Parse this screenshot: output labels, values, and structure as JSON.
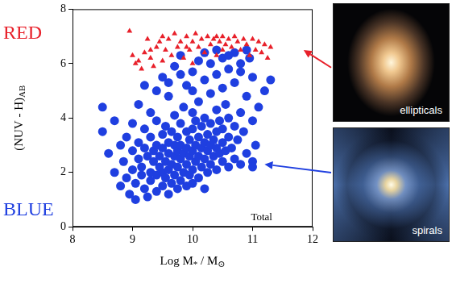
{
  "chart_data": {
    "type": "scatter",
    "x_label": [
      "Log M",
      {
        "sub": "*"
      },
      " / M",
      {
        "sub": "⊙"
      }
    ],
    "y_label": [
      "(NUV - H)",
      {
        "sub": "AB"
      }
    ],
    "xlim": [
      8,
      12
    ],
    "xticks": [
      8,
      9,
      10,
      11,
      12
    ],
    "ylim": [
      0,
      8
    ],
    "yticks": [
      0,
      2,
      4,
      6,
      8
    ],
    "grid": false,
    "annotations": [
      {
        "text": "Total",
        "x": 11.15,
        "y": 0.35
      }
    ],
    "panels": [
      {
        "label": "ellipticals",
        "series": "RED",
        "points_to": {
          "x": 11.85,
          "y": 6.5
        }
      },
      {
        "label": "spirals",
        "series": "BLUE",
        "points_to": {
          "x": 11.2,
          "y": 2.3
        }
      }
    ],
    "series": [
      {
        "name": "RED",
        "color": "#e8202a",
        "marker": "triangle",
        "x": [
          8.95,
          9.0,
          9.05,
          9.1,
          9.15,
          9.2,
          9.25,
          9.3,
          9.35,
          9.4,
          9.45,
          9.5,
          9.5,
          9.55,
          9.6,
          9.65,
          9.7,
          9.75,
          9.8,
          9.85,
          9.9,
          9.95,
          10.0,
          10.0,
          10.05,
          10.1,
          10.15,
          10.2,
          10.25,
          10.3,
          10.35,
          10.4,
          10.45,
          10.5,
          10.5,
          10.55,
          10.6,
          10.65,
          10.7,
          10.75,
          10.8,
          10.85,
          10.9,
          10.95,
          11.0,
          11.05,
          11.1,
          11.15,
          11.2,
          11.25,
          11.3,
          9.3,
          9.9,
          10.4
        ],
        "values": [
          7.2,
          6.3,
          6.0,
          6.1,
          5.8,
          6.4,
          6.9,
          6.2,
          5.9,
          6.6,
          6.8,
          7.0,
          6.1,
          6.5,
          6.9,
          6.3,
          7.1,
          6.6,
          6.8,
          6.2,
          7.0,
          6.5,
          6.8,
          6.0,
          7.1,
          6.6,
          6.9,
          6.4,
          7.0,
          6.7,
          6.9,
          6.3,
          6.8,
          7.0,
          6.5,
          6.7,
          6.9,
          6.6,
          7.0,
          6.8,
          6.5,
          6.9,
          6.7,
          6.3,
          6.9,
          6.5,
          6.8,
          6.4,
          6.7,
          6.2,
          6.6,
          6.5,
          6.6,
          7.0
        ]
      },
      {
        "name": "BLUE",
        "color": "#1f3fe0",
        "marker": "circle",
        "x": [
          8.5,
          8.5,
          8.6,
          8.7,
          8.7,
          8.8,
          8.8,
          8.85,
          8.9,
          8.9,
          8.95,
          9.0,
          9.0,
          9.0,
          9.05,
          9.05,
          9.1,
          9.1,
          9.1,
          9.15,
          9.15,
          9.2,
          9.2,
          9.2,
          9.25,
          9.25,
          9.3,
          9.3,
          9.3,
          9.3,
          9.35,
          9.35,
          9.4,
          9.4,
          9.4,
          9.4,
          9.45,
          9.45,
          9.5,
          9.5,
          9.5,
          9.5,
          9.5,
          9.55,
          9.55,
          9.55,
          9.6,
          9.6,
          9.6,
          9.6,
          9.6,
          9.65,
          9.65,
          9.65,
          9.7,
          9.7,
          9.7,
          9.7,
          9.7,
          9.75,
          9.75,
          9.75,
          9.75,
          9.8,
          9.8,
          9.8,
          9.8,
          9.8,
          9.85,
          9.85,
          9.85,
          9.9,
          9.9,
          9.9,
          9.9,
          9.9,
          9.95,
          9.95,
          9.95,
          10.0,
          10.0,
          10.0,
          10.0,
          10.0,
          10.0,
          10.05,
          10.05,
          10.05,
          10.1,
          10.1,
          10.1,
          10.1,
          10.1,
          10.15,
          10.15,
          10.15,
          10.2,
          10.2,
          10.2,
          10.2,
          10.2,
          10.25,
          10.25,
          10.25,
          10.3,
          10.3,
          10.3,
          10.3,
          10.3,
          10.35,
          10.35,
          10.4,
          10.4,
          10.4,
          10.4,
          10.4,
          10.45,
          10.45,
          10.5,
          10.5,
          10.5,
          10.5,
          10.5,
          10.55,
          10.55,
          10.6,
          10.6,
          10.6,
          10.6,
          10.65,
          10.7,
          10.7,
          10.7,
          10.7,
          10.75,
          10.8,
          10.8,
          10.8,
          10.85,
          10.9,
          10.9,
          10.9,
          11.0,
          11.0,
          11.0,
          11.0,
          11.05,
          11.1,
          11.2,
          11.3,
          9.2,
          9.4,
          9.6,
          9.8,
          10.0,
          10.2,
          10.4,
          10.6,
          10.8,
          10.95
        ],
        "values": [
          4.4,
          3.5,
          2.7,
          3.9,
          2.0,
          3.0,
          1.5,
          2.4,
          1.8,
          3.3,
          1.2,
          2.1,
          2.8,
          3.8,
          1.0,
          1.6,
          2.5,
          3.1,
          4.5,
          1.9,
          2.2,
          1.4,
          2.9,
          3.6,
          1.1,
          2.6,
          1.7,
          2.0,
          3.3,
          4.2,
          2.4,
          2.8,
          1.3,
          1.9,
          3.0,
          3.9,
          2.2,
          2.6,
          1.5,
          2.0,
          2.9,
          3.4,
          5.5,
          1.8,
          2.4,
          3.7,
          1.2,
          2.1,
          2.7,
          3.1,
          4.8,
          1.6,
          2.3,
          3.5,
          1.9,
          2.6,
          3.0,
          4.1,
          5.9,
          1.4,
          2.2,
          2.8,
          3.3,
          1.7,
          2.5,
          3.0,
          3.8,
          6.3,
          2.0,
          2.7,
          4.4,
          1.5,
          2.3,
          2.9,
          3.5,
          5.2,
          1.9,
          2.6,
          3.2,
          1.6,
          2.1,
          2.8,
          3.6,
          4.2,
          5.7,
          2.4,
          3.0,
          3.9,
          1.8,
          2.6,
          3.3,
          4.6,
          6.1,
          2.2,
          2.9,
          3.7,
          1.4,
          2.5,
          3.1,
          4.0,
          5.4,
          2.0,
          2.8,
          3.4,
          2.3,
          3.0,
          3.8,
          4.9,
          6.0,
          2.6,
          3.2,
          2.1,
          2.9,
          3.5,
          4.3,
          5.6,
          2.7,
          3.9,
          2.4,
          3.1,
          3.6,
          5.1,
          6.2,
          2.8,
          4.5,
          2.2,
          3.3,
          4.0,
          5.8,
          2.9,
          2.5,
          3.7,
          5.3,
          6.4,
          3.2,
          2.3,
          4.2,
          6.0,
          3.5,
          2.7,
          4.8,
          6.5,
          2.4,
          3.9,
          5.5,
          2.2,
          3.0,
          4.4,
          5.0,
          5.4,
          5.2,
          5.0,
          5.3,
          5.6,
          5.0,
          6.4,
          6.5,
          6.3,
          5.7,
          6.2
        ]
      }
    ]
  }
}
